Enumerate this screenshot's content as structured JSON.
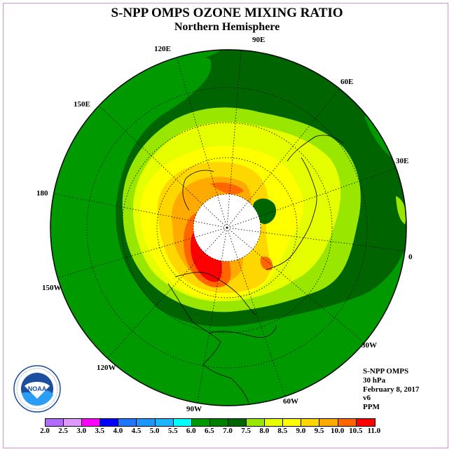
{
  "header": {
    "title": "S-NPP OMPS OZONE MIXING RATIO",
    "subtitle": "Northern Hemisphere"
  },
  "map": {
    "projection": "north-polar-stereographic",
    "longitude_labels": [
      "90E",
      "60E",
      "30E",
      "0",
      "30W",
      "60W",
      "90W",
      "120W",
      "150W",
      "180",
      "150E",
      "120E"
    ],
    "contour_fill_colors": {
      "6.5-7.0": "#006400",
      "7.0-7.5": "#009a00",
      "7.5-8.0": "#99e600",
      "8.0-8.5": "#e6ff00",
      "8.5-9.0": "#ffff00",
      "9.0-9.5": "#ffd700",
      "9.5-10.0": "#ffaa00",
      "10.0-10.5": "#ff6600",
      "10.5-11.0": "#ff0000",
      "polar-night-mask": "#ffffff"
    }
  },
  "info": {
    "instrument": "S-NPP OMPS",
    "level": "30 hPa",
    "date": "February 8, 2017",
    "version": "v6",
    "units": "PPM"
  },
  "colorbar": {
    "labels": [
      "2.0",
      "2.5",
      "3.0",
      "3.5",
      "4.0",
      "4.5",
      "5.0",
      "5.5",
      "6.0",
      "6.5",
      "7.0",
      "7.5",
      "8.0",
      "8.5",
      "9.0",
      "9.5",
      "10.0",
      "10.5",
      "11.0"
    ],
    "colors": [
      "#b36bff",
      "#dd99ff",
      "#ff00ff",
      "#0000ff",
      "#1e78ff",
      "#1e96ff",
      "#1eb4ff",
      "#00ffff",
      "#009a00",
      "#008000",
      "#006400",
      "#99e600",
      "#e6ff00",
      "#ffff00",
      "#ffd700",
      "#ffaa00",
      "#ff6600",
      "#ff0000",
      "#8b4513"
    ]
  },
  "logo": {
    "text": "NOAA",
    "ring_text": "NATIONAL OCEANIC AND ATMOSPHERIC ADMINISTRATION · U.S. DEPARTMENT OF COMMERCE"
  }
}
